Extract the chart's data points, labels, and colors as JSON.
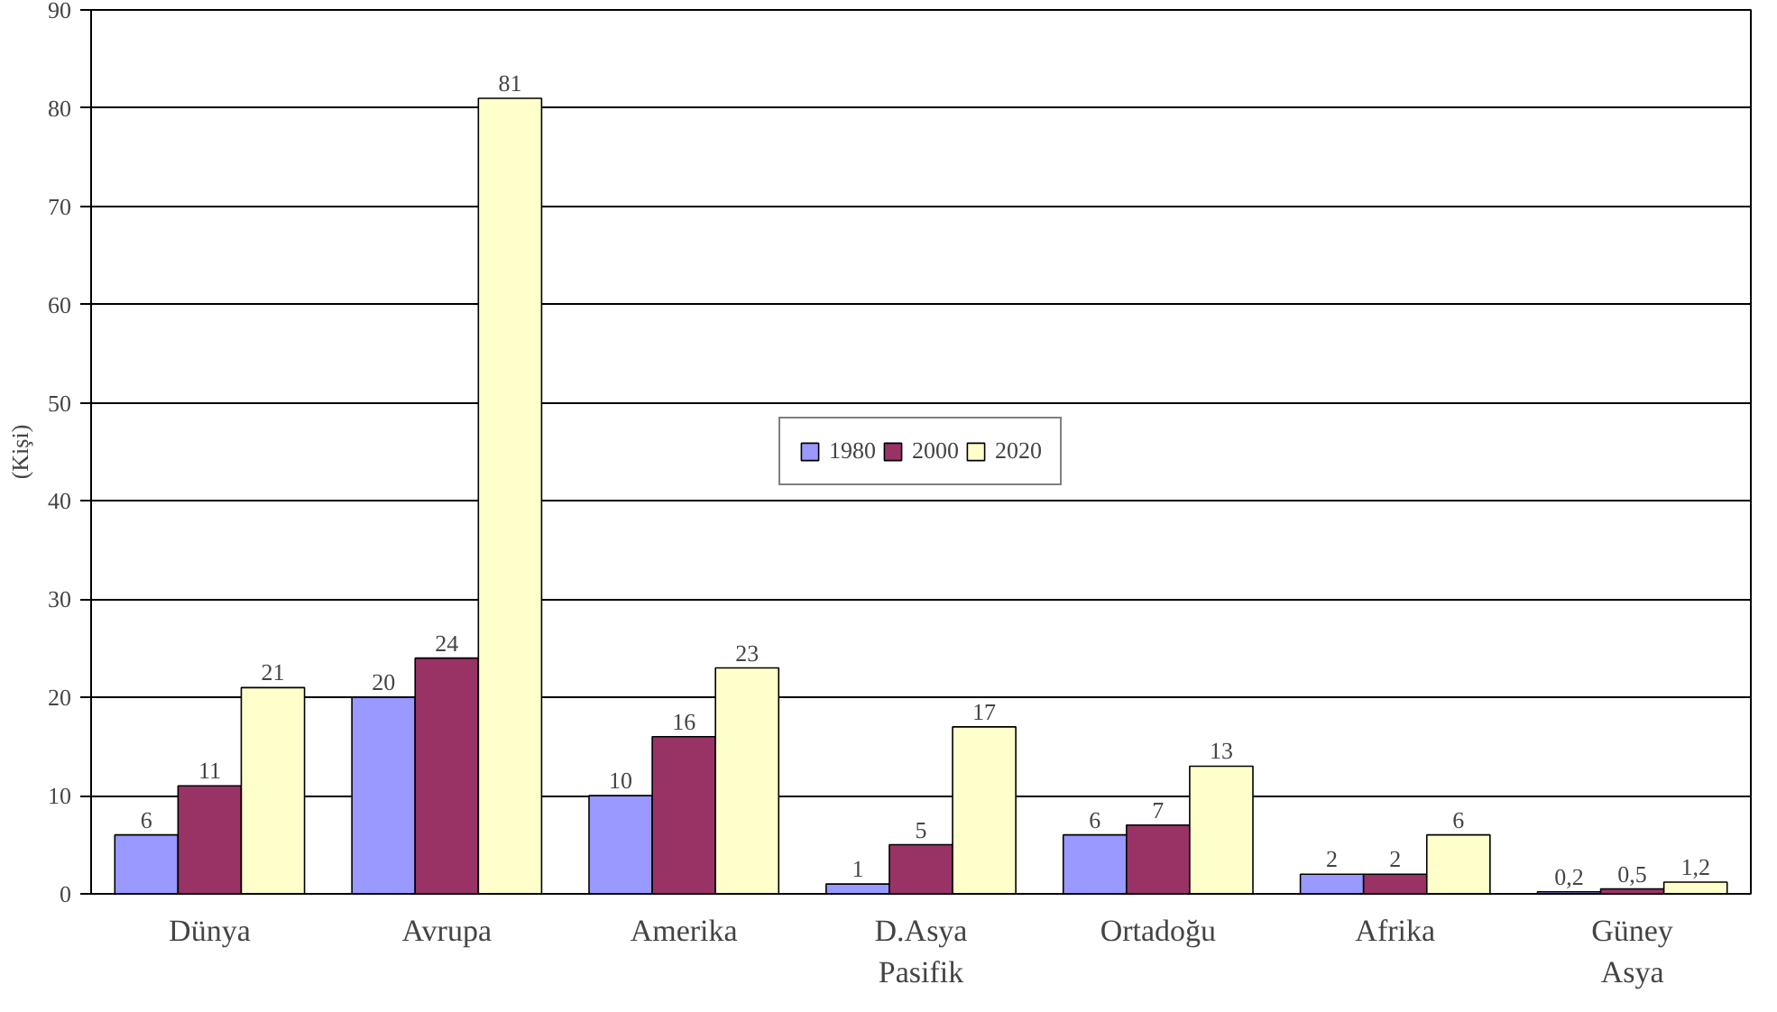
{
  "chart_data": {
    "type": "bar",
    "ylabel": "(Kişi)",
    "categories": [
      "Dünya",
      "Avrupa",
      "Amerika",
      "D.Asya\nPasifik",
      "Ortadoğu",
      "Afrika",
      "Güney\nAsya"
    ],
    "series": [
      {
        "name": "1980",
        "color": "#9999ff",
        "values": [
          6,
          20,
          10,
          1,
          6,
          2,
          0.2
        ],
        "value_labels": [
          "6",
          "20",
          "10",
          "1",
          "6",
          "2",
          "0,2"
        ]
      },
      {
        "name": "2000",
        "color": "#993366",
        "values": [
          11,
          24,
          16,
          5,
          7,
          2,
          0.5
        ],
        "value_labels": [
          "11",
          "24",
          "16",
          "5",
          "7",
          "2",
          "0,5"
        ]
      },
      {
        "name": "2020",
        "color": "#ffffcc",
        "values": [
          21,
          81,
          23,
          17,
          13,
          6,
          1.2
        ],
        "value_labels": [
          "21",
          "81",
          "23",
          "17",
          "13",
          "6",
          "1,2"
        ]
      }
    ],
    "ylim": [
      0,
      90
    ],
    "yticks": [
      0,
      10,
      20,
      30,
      40,
      50,
      60,
      70,
      80,
      90
    ],
    "grid": "y",
    "legend": "center"
  }
}
